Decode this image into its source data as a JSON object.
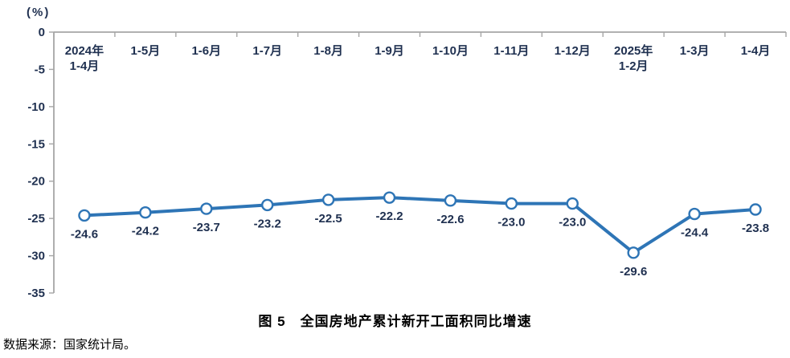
{
  "chart_data": {
    "type": "line",
    "title": "图 5　全国房地产累计新开工面积同比增速",
    "unit_label": "(%)",
    "categories": [
      "2024年\n1-4月",
      "1-5月",
      "1-6月",
      "1-7月",
      "1-8月",
      "1-9月",
      "1-10月",
      "1-11月",
      "1-12月",
      "2025年\n1-2月",
      "1-3月",
      "1-4月"
    ],
    "values": [
      -24.6,
      -24.2,
      -23.7,
      -23.2,
      -22.5,
      -22.2,
      -22.6,
      -23.0,
      -23.0,
      -29.6,
      -24.4,
      -23.8
    ],
    "ylim": [
      -35,
      0
    ],
    "ytick_step": 5,
    "yticks": [
      0,
      -5,
      -10,
      -15,
      -20,
      -25,
      -30,
      -35
    ],
    "grid": false,
    "legend": false,
    "line_color": "#2E75B6",
    "marker": "open-circle",
    "marker_fill": "#FFFFFF",
    "axis_color": "#A6A6A6",
    "label_color": "#1F3050",
    "xlabel": "",
    "ylabel": "(%)"
  },
  "source_note": "数据来源：国家统计局。"
}
